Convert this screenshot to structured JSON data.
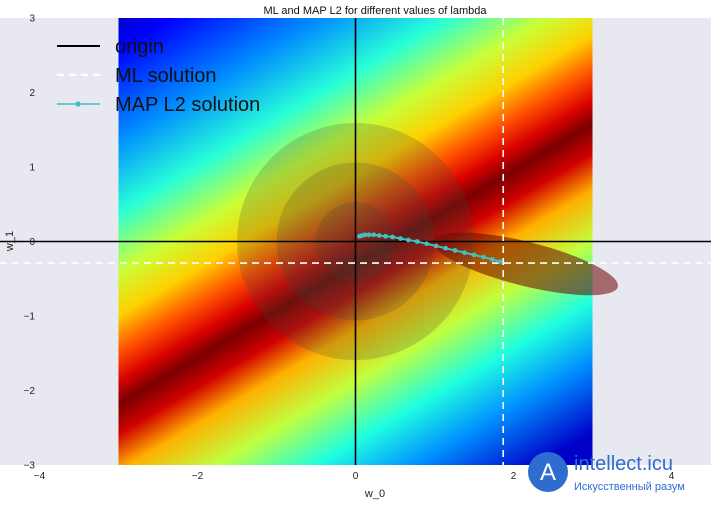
{
  "chart_data": {
    "type": "scatter",
    "title": "ML and MAP L2 for different values of lambda",
    "xlabel": "w_0",
    "ylabel": "w_1",
    "xlim": [
      -4.5,
      4.5
    ],
    "ylim": [
      -3,
      3
    ],
    "x_ticks": [
      -4,
      -2,
      0,
      2,
      4
    ],
    "x_tick_labels": [
      "−4",
      "−2",
      "0",
      "2",
      "4"
    ],
    "y_ticks": [
      -3,
      -2,
      -1,
      0,
      1,
      2,
      3
    ],
    "y_tick_labels": [
      "−3",
      "−2",
      "−1",
      "0",
      "1",
      "2",
      "3"
    ],
    "grid": false,
    "background_color": "#e8e8f0",
    "colormap": "jet",
    "heatmap_extent": {
      "x": [
        -3,
        3
      ],
      "y": [
        -3,
        3
      ]
    },
    "likelihood_peak": {
      "w_0": 1.9,
      "w_1": -0.3
    },
    "prior_contour_radii": [
      0.5,
      1.0,
      1.5
    ],
    "legend_position": "top-left",
    "series": [
      {
        "name": "origin",
        "kind": "axis-lines",
        "color": "#000000",
        "style": "solid",
        "x": 0,
        "y": 0
      },
      {
        "name": "ML solution",
        "kind": "axis-lines",
        "color": "#ffffff",
        "style": "dashed",
        "x": 1.87,
        "y": -0.29
      },
      {
        "name": "MAP L2 solution",
        "kind": "line-with-markers",
        "color": "#40c0c0",
        "x": [
          0.05,
          0.08,
          0.12,
          0.17,
          0.23,
          0.3,
          0.38,
          0.47,
          0.57,
          0.67,
          0.78,
          0.9,
          1.02,
          1.14,
          1.26,
          1.38,
          1.5,
          1.62,
          1.73,
          1.83
        ],
        "y": [
          0.07,
          0.08,
          0.09,
          0.09,
          0.09,
          0.08,
          0.07,
          0.06,
          0.04,
          0.02,
          0.0,
          -0.03,
          -0.06,
          -0.09,
          -0.12,
          -0.15,
          -0.18,
          -0.21,
          -0.24,
          -0.27
        ]
      }
    ]
  },
  "watermark": {
    "brand": "intellect.icu",
    "tagline": "Искусственный разум",
    "accent_color": "#2e6cd0"
  }
}
